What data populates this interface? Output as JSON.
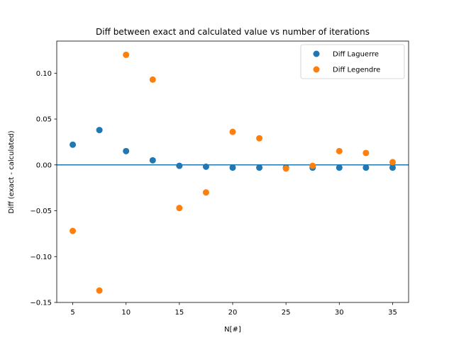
{
  "chart_data": {
    "type": "scatter",
    "title": "Diff between exact and calculated value vs number of iterations",
    "xlabel": "N[#]",
    "ylabel": "Diff (exact - calculated)",
    "xlim": [
      3.5,
      36.5
    ],
    "ylim": [
      -0.15,
      0.135
    ],
    "xticks": [
      5,
      10,
      15,
      20,
      25,
      30,
      35
    ],
    "xtick_labels": [
      "5",
      "10",
      "15",
      "20",
      "25",
      "30",
      "35"
    ],
    "yticks": [
      -0.15,
      -0.1,
      -0.05,
      0.0,
      0.05,
      0.1
    ],
    "ytick_labels": [
      "−0.15",
      "−0.10",
      "−0.05",
      "0.00",
      "0.05",
      "0.10"
    ],
    "grid": false,
    "legend_position": "top-right",
    "zero_line": {
      "y": 0,
      "color": "#1f77b4"
    },
    "series": [
      {
        "name": "Diff Laguerre",
        "color": "#1f77b4",
        "x": [
          5,
          7.5,
          10,
          12.5,
          15,
          17.5,
          20,
          22.5,
          25,
          27.5,
          30,
          32.5,
          35
        ],
        "y": [
          0.022,
          0.038,
          0.015,
          0.005,
          -0.001,
          -0.002,
          -0.003,
          -0.003,
          -0.003,
          -0.003,
          -0.003,
          -0.003,
          -0.003
        ]
      },
      {
        "name": "Diff Legendre",
        "color": "#ff7f0e",
        "x": [
          5,
          7.5,
          10,
          12.5,
          15,
          17.5,
          20,
          22.5,
          25,
          27.5,
          30,
          32.5,
          35
        ],
        "y": [
          -0.072,
          -0.137,
          0.12,
          0.093,
          -0.047,
          -0.03,
          0.036,
          0.029,
          -0.004,
          -0.001,
          0.015,
          0.013,
          0.003
        ]
      }
    ]
  }
}
